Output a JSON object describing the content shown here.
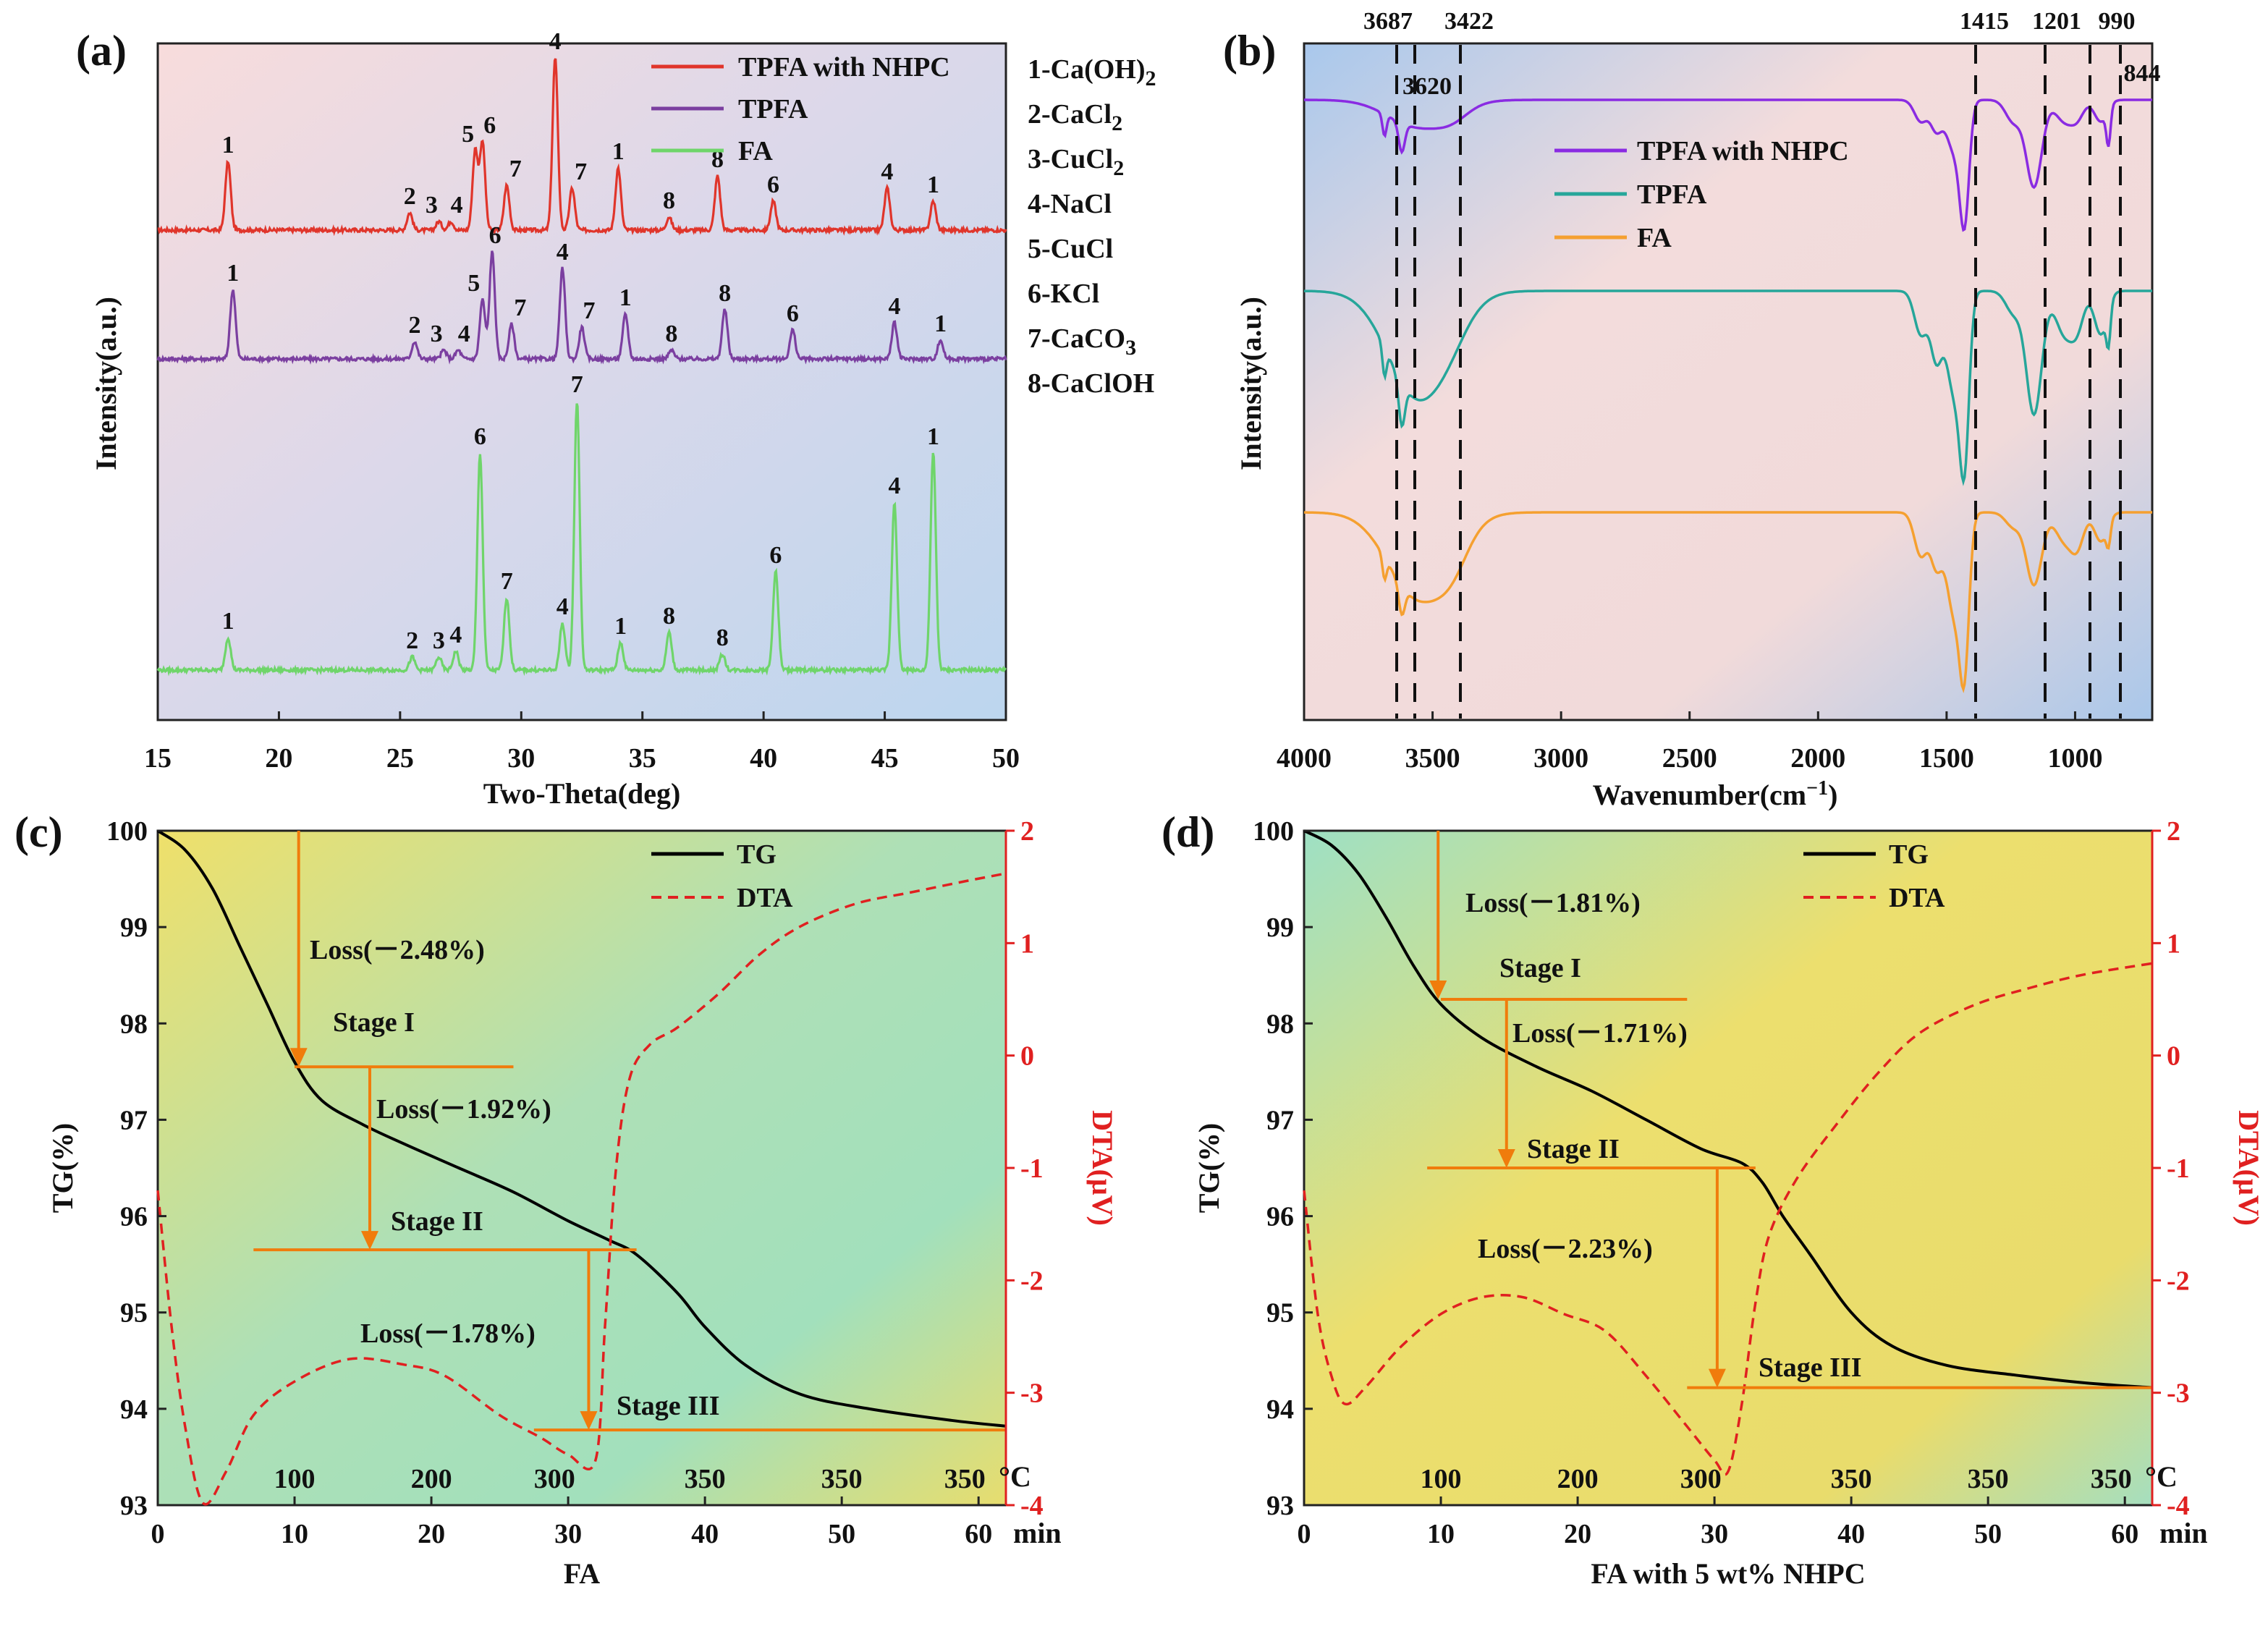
{
  "chart_data": [
    {
      "panel": "(a)",
      "type": "line",
      "xlabel": "Two-Theta(deg)",
      "ylabel": "Intensity(a.u.)",
      "xlim": [
        15,
        50
      ],
      "xticks": [
        "15",
        "20",
        "25",
        "30",
        "35",
        "40",
        "45",
        "50"
      ],
      "series": [
        {
          "name": "TPFA with NHPC",
          "color": "#e0352b",
          "peaks": [
            {
              "x": 17.9,
              "label": "1"
            },
            {
              "x": 25.4,
              "label": "2"
            },
            {
              "x": 26.6,
              "label": "3"
            },
            {
              "x": 27.1,
              "label": "4"
            },
            {
              "x": 28.1,
              "label": "5"
            },
            {
              "x": 28.4,
              "label": "6"
            },
            {
              "x": 29.4,
              "label": "7"
            },
            {
              "x": 31.4,
              "label": "4"
            },
            {
              "x": 32.1,
              "label": "7"
            },
            {
              "x": 34.0,
              "label": "1"
            },
            {
              "x": 36.1,
              "label": "8"
            },
            {
              "x": 38.1,
              "label": "8"
            },
            {
              "x": 40.4,
              "label": "6"
            },
            {
              "x": 45.1,
              "label": "4"
            },
            {
              "x": 47.0,
              "label": "1"
            }
          ]
        },
        {
          "name": "TPFA",
          "color": "#7b3fa0",
          "peaks": [
            {
              "x": 18.1,
              "label": "1"
            },
            {
              "x": 25.6,
              "label": "2"
            },
            {
              "x": 26.8,
              "label": "3"
            },
            {
              "x": 27.4,
              "label": "4"
            },
            {
              "x": 28.4,
              "label": "5"
            },
            {
              "x": 28.8,
              "label": "6"
            },
            {
              "x": 29.6,
              "label": "7"
            },
            {
              "x": 31.7,
              "label": "4"
            },
            {
              "x": 32.5,
              "label": "7"
            },
            {
              "x": 34.3,
              "label": "1"
            },
            {
              "x": 36.2,
              "label": "8"
            },
            {
              "x": 38.4,
              "label": "8"
            },
            {
              "x": 41.2,
              "label": "6"
            },
            {
              "x": 45.4,
              "label": "4"
            },
            {
              "x": 47.3,
              "label": "1"
            }
          ]
        },
        {
          "name": "FA",
          "color": "#6fd56a",
          "peaks": [
            {
              "x": 17.9,
              "label": "1"
            },
            {
              "x": 25.5,
              "label": "2"
            },
            {
              "x": 26.6,
              "label": "3"
            },
            {
              "x": 27.3,
              "label": "4"
            },
            {
              "x": 28.3,
              "label": "6"
            },
            {
              "x": 29.4,
              "label": "7"
            },
            {
              "x": 31.7,
              "label": "4"
            },
            {
              "x": 32.3,
              "label": "7"
            },
            {
              "x": 34.1,
              "label": "1"
            },
            {
              "x": 36.1,
              "label": "8"
            },
            {
              "x": 38.3,
              "label": "8"
            },
            {
              "x": 40.5,
              "label": "6"
            },
            {
              "x": 45.4,
              "label": "4"
            },
            {
              "x": 47.0,
              "label": "1"
            }
          ]
        }
      ],
      "phase_legend": [
        "1-Ca(OH)",
        "2-CaCl",
        "3-CuCl",
        "4-NaCl",
        "5-CuCl",
        "6-KCl",
        "7-CaCO",
        "8-CaClOH"
      ],
      "phase_subscripts": [
        "2",
        "2",
        "2",
        "",
        "",
        "",
        "3",
        ""
      ]
    },
    {
      "panel": "(b)",
      "type": "line",
      "xlabel": "Wavenumber(cm",
      "xlabel_sup": "−1",
      "xlabel_end": ")",
      "ylabel": "Intensity(a.u.)",
      "xlim": [
        4000,
        700
      ],
      "xticks": [
        "4000",
        "3500",
        "3000",
        "2500",
        "2000",
        "1500",
        "1000"
      ],
      "series": [
        {
          "name": "TPFA with NHPC",
          "color": "#8a2be2"
        },
        {
          "name": "TPFA",
          "color": "#26a69a"
        },
        {
          "name": "FA",
          "color": "#f5a030"
        }
      ],
      "marked_bands": [
        "3687",
        "3620",
        "3422",
        "1415",
        "1201",
        "990",
        "844"
      ]
    },
    {
      "panel": "(c)",
      "type": "line",
      "xlabel": "FA",
      "ylabel": "TG(%)",
      "ylabel_right": "DTA(μV)",
      "xlim": [
        0,
        62
      ],
      "ylim": [
        93,
        100
      ],
      "ylim_right": [
        -4,
        2
      ],
      "xticks": [
        "0",
        "10",
        "20",
        "30",
        "40",
        "50",
        "60"
      ],
      "yticks": [
        "93",
        "94",
        "95",
        "96",
        "97",
        "98",
        "99",
        "100"
      ],
      "yticks_right": [
        "-4",
        "-3",
        "-2",
        "-1",
        "0",
        "1",
        "2"
      ],
      "time_unit": "min",
      "temp_unit": "°C",
      "temp_ticks": [
        "100",
        "200",
        "300",
        "350",
        "350",
        "350"
      ],
      "series": [
        {
          "name": "TG",
          "color": "#000000",
          "style": "solid"
        },
        {
          "name": "DTA",
          "color": "#e02020",
          "style": "dashed"
        }
      ],
      "stages": [
        "Stage I",
        "Stage II",
        "Stage III"
      ],
      "losses": [
        "Loss(－2.48%)",
        "Loss(－1.92%)",
        "Loss(－1.78%)"
      ]
    },
    {
      "panel": "(d)",
      "type": "line",
      "xlabel": "FA with 5 wt% NHPC",
      "ylabel": "TG(%)",
      "ylabel_right": "DTA(μV)",
      "xlim": [
        0,
        62
      ],
      "ylim": [
        93,
        100
      ],
      "ylim_right": [
        -4,
        2
      ],
      "xticks": [
        "0",
        "10",
        "20",
        "30",
        "40",
        "50",
        "60"
      ],
      "yticks": [
        "93",
        "94",
        "95",
        "96",
        "97",
        "98",
        "99",
        "100"
      ],
      "yticks_right": [
        "-4",
        "-3",
        "-2",
        "-1",
        "0",
        "1",
        "2"
      ],
      "time_unit": "min",
      "temp_unit": "°C",
      "temp_ticks": [
        "100",
        "200",
        "300",
        "350",
        "350",
        "350"
      ],
      "series": [
        {
          "name": "TG",
          "color": "#000000",
          "style": "solid"
        },
        {
          "name": "DTA",
          "color": "#e02020",
          "style": "dashed"
        }
      ],
      "stages": [
        "Stage I",
        "Stage II",
        "Stage III"
      ],
      "losses": [
        "Loss(－1.81%)",
        "Loss(－1.71%)",
        "Loss(－2.23%)"
      ]
    }
  ]
}
